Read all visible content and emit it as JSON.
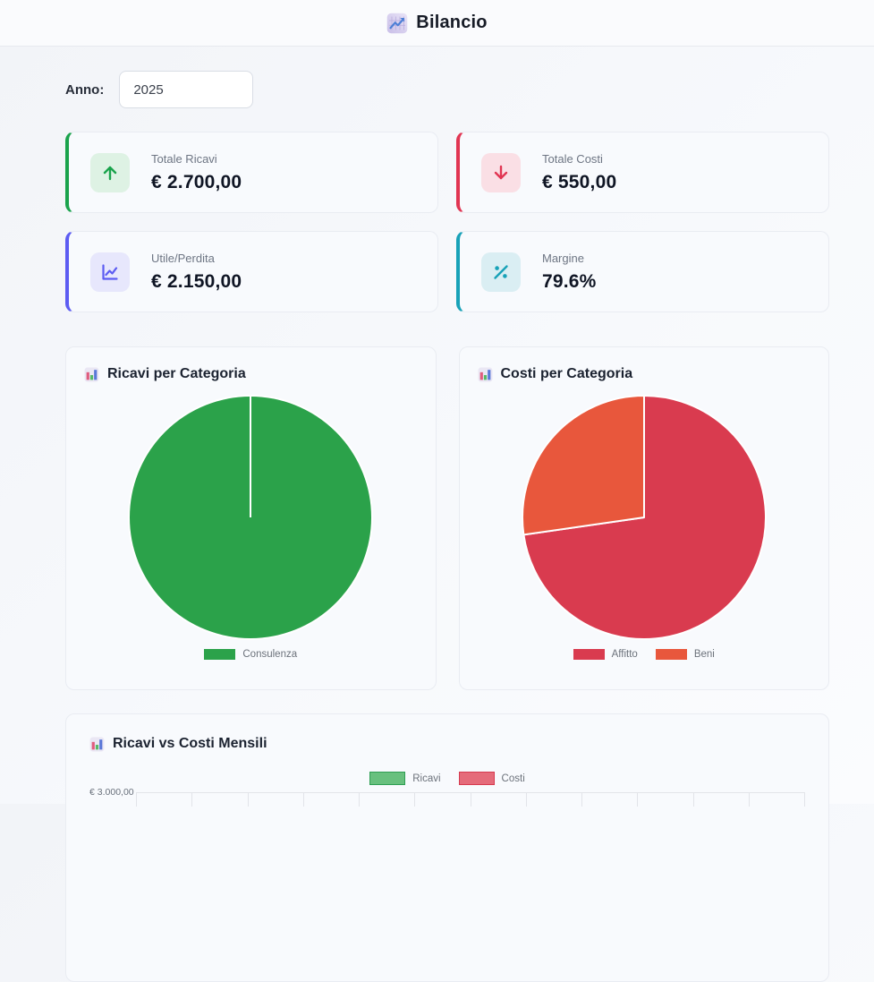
{
  "header": {
    "title": "Bilancio"
  },
  "filters": {
    "anno_label": "Anno:",
    "anno_value": "2025"
  },
  "stats": [
    {
      "label": "Totale Ricavi",
      "value": "€ 2.700,00",
      "icon": "arrow-up-icon",
      "accent": "#1aa34c",
      "icon_bg": "#def2e4"
    },
    {
      "label": "Totale Costi",
      "value": "€ 550,00",
      "icon": "arrow-down-icon",
      "accent": "#e13552",
      "icon_bg": "#fadfe5"
    },
    {
      "label": "Utile/Perdita",
      "value": "€ 2.150,00",
      "icon": "line-chart-icon",
      "accent": "#5c5cf2",
      "icon_bg": "#e7e7fc"
    },
    {
      "label": "Margine",
      "value": "79.6%",
      "icon": "percent-icon",
      "accent": "#18a2b8",
      "icon_bg": "#daeef3"
    }
  ],
  "chart_data": [
    {
      "type": "pie",
      "title": "Ricavi per Categoria",
      "labels": [
        "Consulenza"
      ],
      "values": [
        2700
      ],
      "percentages": [
        100
      ],
      "colors": [
        "#2ba24a"
      ],
      "legend_position": "bottom"
    },
    {
      "type": "pie",
      "title": "Costi per Categoria",
      "labels": [
        "Affitto",
        "Beni"
      ],
      "values": [
        400,
        150
      ],
      "percentages": [
        72.7,
        27.3
      ],
      "colors": [
        "#d93b4f",
        "#e8573c"
      ],
      "legend_position": "bottom"
    },
    {
      "type": "bar",
      "title": "Ricavi vs Costi Mensili",
      "series": [
        {
          "name": "Ricavi",
          "fill": "#68c07e",
          "border": "#2f9e53"
        },
        {
          "name": "Costi",
          "fill": "#e56b7a",
          "border": "#d63a50"
        }
      ],
      "visible_y_tick": "€ 3.000,00",
      "x_tick_count": 12,
      "legend_position": "top",
      "note_layout": "plot area cut off at bottom edge of viewport; only top gridline visible"
    }
  ]
}
